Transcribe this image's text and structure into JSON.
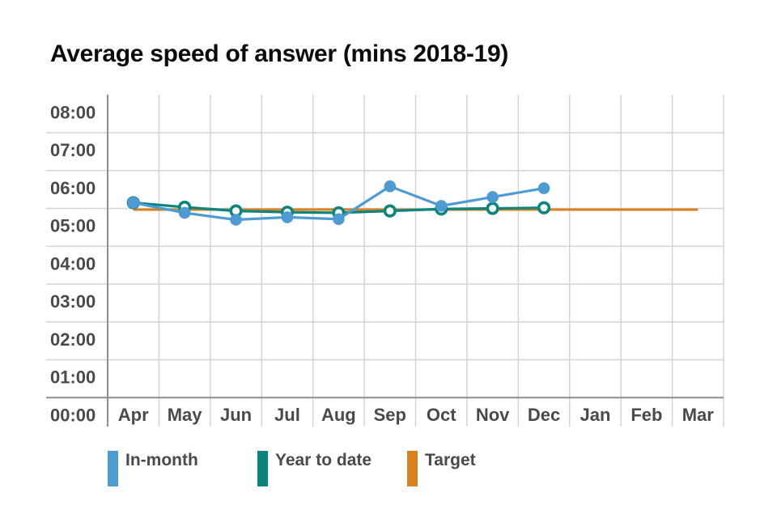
{
  "title": "Average speed of answer (mins 2018-19)",
  "chart_data": {
    "type": "line",
    "title": "Average speed of answer (mins 2018-19)",
    "x_categories": [
      "Apr",
      "May",
      "Jun",
      "Jul",
      "Aug",
      "Sep",
      "Oct",
      "Nov",
      "Dec",
      "Jan",
      "Feb",
      "Mar"
    ],
    "y_ticks": [
      "08:00",
      "07:00",
      "06:00",
      "05:00",
      "04:00",
      "03:00",
      "02:00",
      "01:00",
      "00:00"
    ],
    "y_axis": {
      "min_seconds": 0,
      "max_seconds": 480,
      "tick_interval_seconds": 60,
      "format": "mm:ss"
    },
    "grid": true,
    "legend_position": "bottom",
    "series": [
      {
        "name": "In-month",
        "color": "#4e9bd4",
        "marker": "filled-circle",
        "values_mmss": [
          "5:09",
          "4:53",
          "4:42",
          "4:46",
          "4:43",
          "5:35",
          "5:04",
          "5:18",
          "5:32"
        ],
        "values_seconds": [
          309,
          293,
          282,
          286,
          283,
          335,
          304,
          318,
          332
        ]
      },
      {
        "name": "Year to date",
        "color": "#0a857c",
        "marker": "open-circle",
        "values_mmss": [
          "5:09",
          "5:02",
          "4:56",
          "4:54",
          "4:53",
          "4:56",
          "4:59",
          "5:00",
          "5:01"
        ],
        "values_seconds": [
          309,
          302,
          296,
          294,
          293,
          296,
          299,
          300,
          301
        ]
      },
      {
        "name": "Target",
        "color": "#d9811f",
        "marker": "none",
        "values_mmss": [
          "4:58",
          "4:58",
          "4:58",
          "4:58",
          "4:58",
          "4:58",
          "4:58",
          "4:58",
          "4:58",
          "4:58",
          "4:58",
          "4:58"
        ],
        "values_seconds": [
          298,
          298,
          298,
          298,
          298,
          298,
          298,
          298,
          298,
          298,
          298,
          298
        ]
      }
    ],
    "colors": {
      "grid": "#d4d4d4",
      "axis": "#8e8e8e",
      "tick_text": "#4a4a4a",
      "title_text": "#0b0c0c",
      "background": "#ffffff"
    }
  }
}
